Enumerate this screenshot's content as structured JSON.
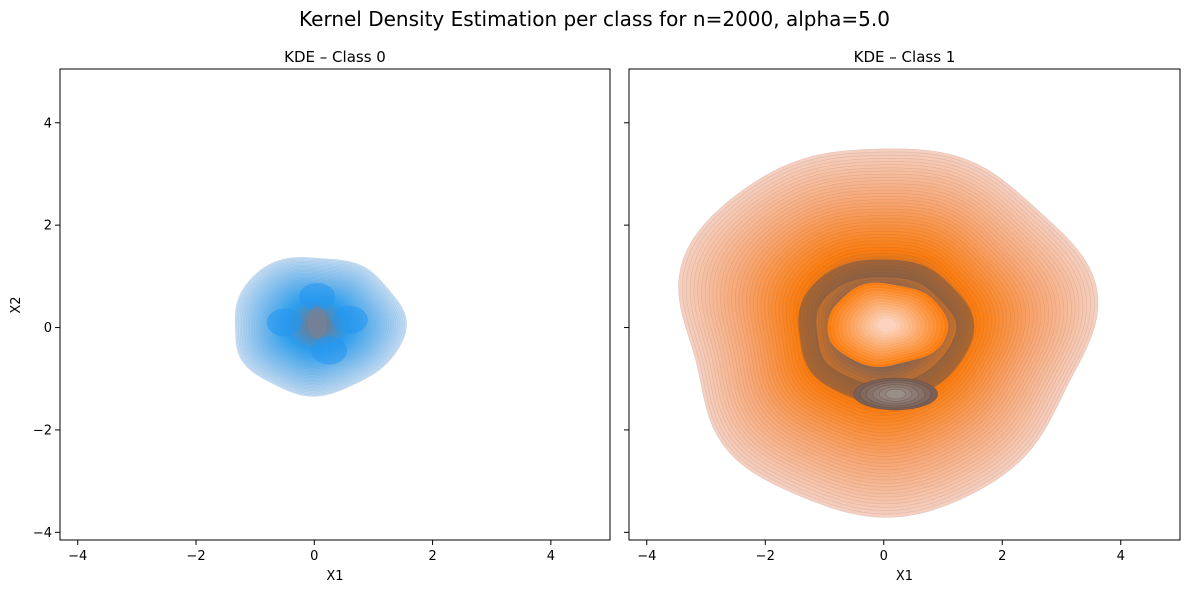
{
  "figure": {
    "title": "Kernel Density Estimation per class for n=2000, alpha=5.0"
  },
  "chart_data": [
    {
      "type": "kde-contour",
      "title": "KDE – Class 0",
      "xlabel": "X1",
      "ylabel": "X2",
      "xlim": [
        -4.3,
        5.0
      ],
      "ylim": [
        -4.15,
        5.05
      ],
      "xticks": [
        -4,
        -2,
        0,
        2,
        4
      ],
      "yticks": [
        -4,
        -2,
        0,
        2,
        4
      ],
      "xtick_labels": [
        "−4",
        "−2",
        "0",
        "2",
        "4"
      ],
      "ytick_labels": [
        "−4",
        "−2",
        "0",
        "2",
        "4"
      ],
      "show_ytick_labels": true,
      "density": {
        "shape": "blob",
        "center": [
          0.05,
          0.05
        ],
        "outer_extent": [
          -1.4,
          1.4,
          -1.3,
          1.4
        ],
        "inner_ring_radius": 0.65
      },
      "colors": {
        "outer": "#c4dcf3",
        "mid": "#2a9ff0",
        "core": "#6b7d93"
      }
    },
    {
      "type": "kde-contour",
      "title": "KDE – Class 1",
      "xlabel": "X1",
      "ylabel": "",
      "xlim": [
        -4.3,
        5.0
      ],
      "ylim": [
        -4.15,
        5.05
      ],
      "xticks": [
        -4,
        -2,
        0,
        2,
        4
      ],
      "yticks": [
        -4,
        -2,
        0,
        2,
        4
      ],
      "xtick_labels": [
        "−4",
        "−2",
        "0",
        "2",
        "4"
      ],
      "ytick_labels": [],
      "show_ytick_labels": false,
      "density": {
        "shape": "ring",
        "center": [
          0.0,
          0.0
        ],
        "outer_extent": [
          -3.4,
          3.45,
          -3.45,
          3.6
        ],
        "ring_radius": 1.3,
        "hot_spot": [
          0.2,
          -1.3
        ]
      },
      "colors": {
        "outer": "#f5cfc0",
        "mid": "#fb7c0e",
        "core": "#7d6155"
      }
    }
  ]
}
